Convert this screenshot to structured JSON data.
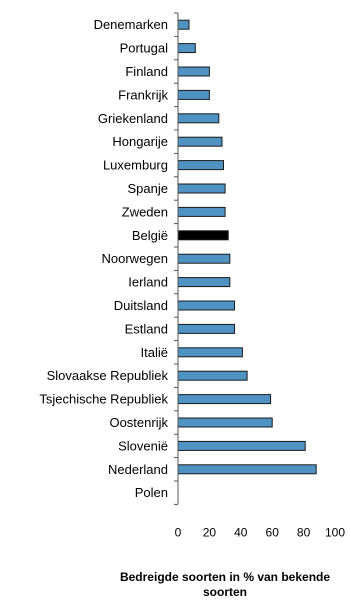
{
  "chart_data": {
    "type": "bar",
    "orientation": "horizontal",
    "categories": [
      "Denemarken",
      "Portugal",
      "Finland",
      "Frankrijk",
      "Griekenland",
      "Hongarije",
      "Luxemburg",
      "Spanje",
      "Zweden",
      "België",
      "Noorwegen",
      "Ierland",
      "Duitsland",
      "Estland",
      "Italië",
      "Slovaakse Republiek",
      "Tsjechische Republiek",
      "Oostenrijk",
      "Slovenië",
      "Nederland",
      "Polen"
    ],
    "values": [
      7,
      11,
      20,
      20,
      26,
      28,
      29,
      30,
      30,
      32,
      33,
      33,
      36,
      36,
      41,
      44,
      59,
      60,
      81,
      88,
      0
    ],
    "highlight_category": "België",
    "xlabel": "Bedreigde soorten in % van bekende soorten",
    "xlim": [
      0,
      100
    ],
    "xticks": [
      0,
      20,
      40,
      60,
      80,
      100
    ],
    "bar_color": "#4f93c2",
    "highlight_color": "#000000",
    "grid": false,
    "legend": false
  }
}
